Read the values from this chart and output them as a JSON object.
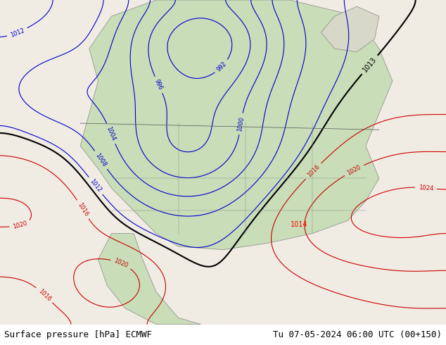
{
  "title_left": "Surface pressure [hPa] ECMWF",
  "title_right": "Tu 07-05-2024 06:00 UTC (00+150)",
  "bg_color": "#f0f0f0",
  "land_color": "#c8e6c0",
  "ocean_color": "#f5f5f5",
  "contour_color_blue": "#0000cc",
  "contour_color_red": "#cc0000",
  "contour_color_black": "#000000",
  "label_fontsize": 8,
  "footer_fontsize": 9,
  "figsize": [
    6.34,
    4.9
  ],
  "dpi": 100
}
